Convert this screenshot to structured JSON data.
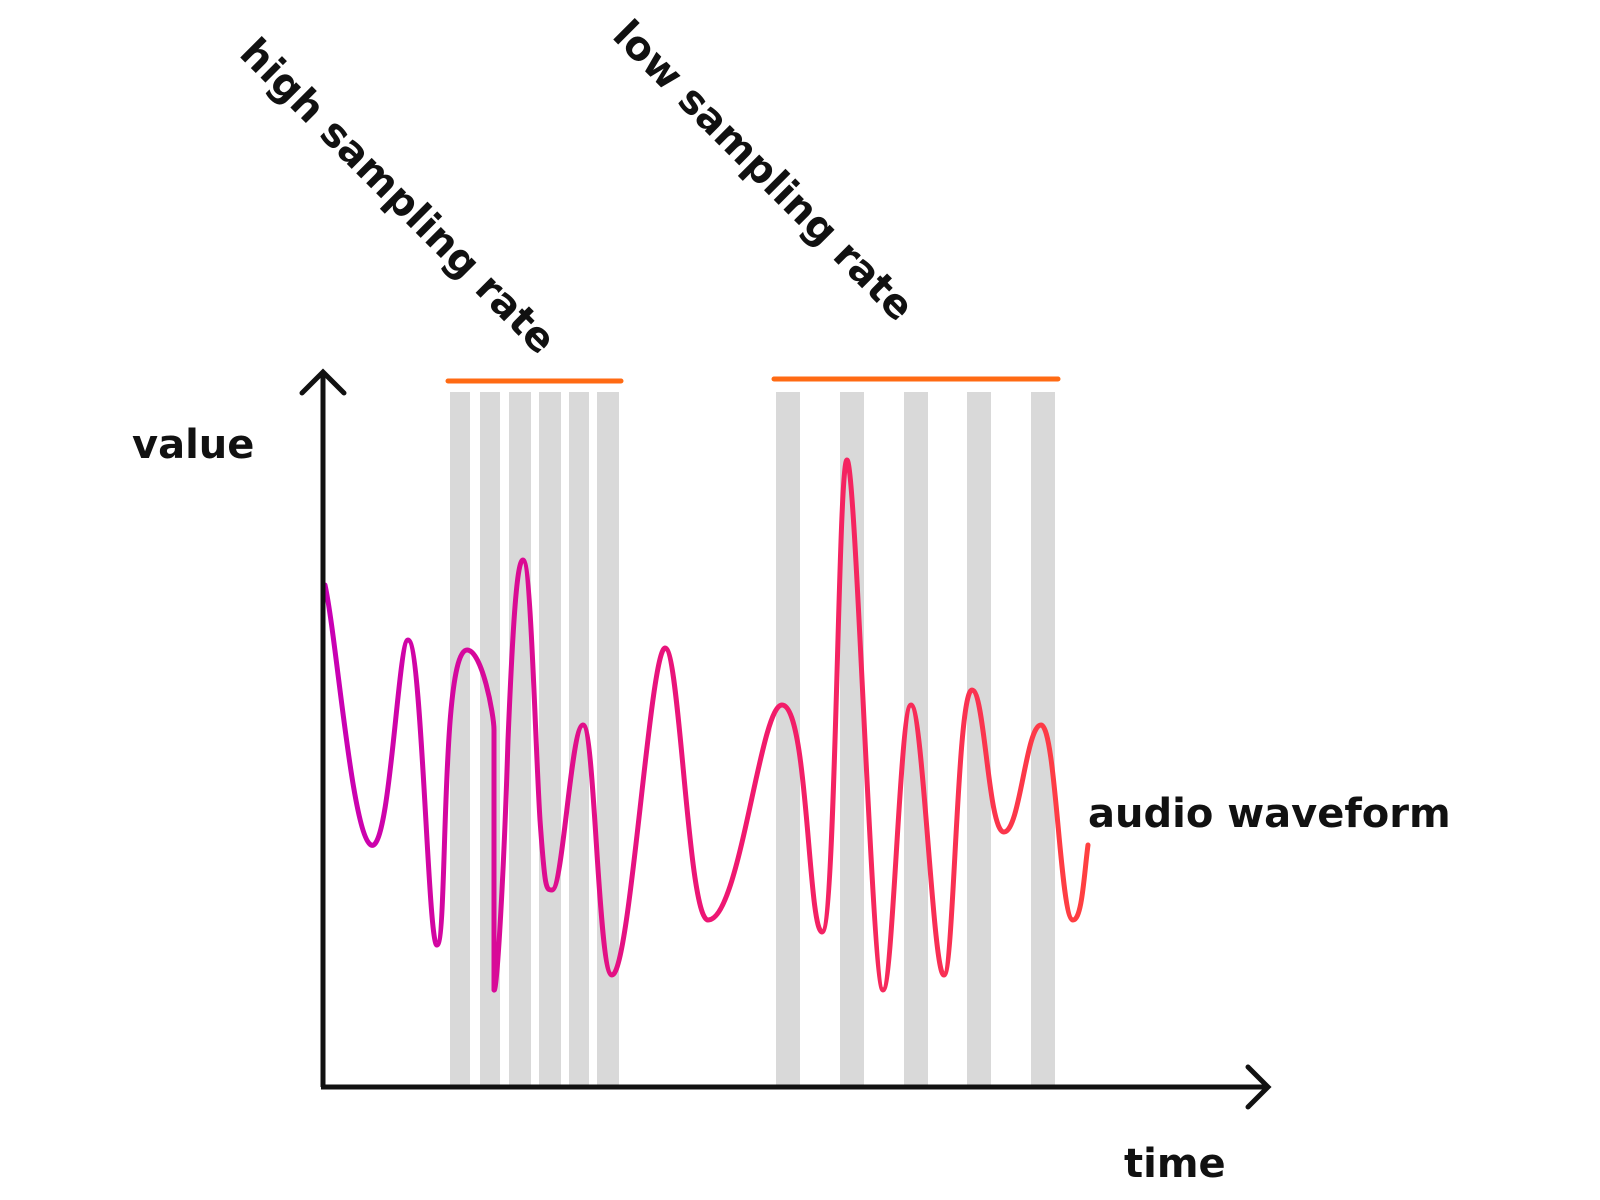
{
  "labels": {
    "y_axis": "value",
    "x_axis": "time",
    "waveform": "audio waveform",
    "high_rate": "high sampling rate",
    "low_rate": "low sampling rate"
  },
  "colors": {
    "axis": "#111111",
    "sample_bar": "#d9d9d9",
    "bracket": "#ff6a13",
    "wave_start": "#c800b4",
    "wave_mid": "#f0196e",
    "wave_end": "#ff4040"
  },
  "groups": {
    "high_rate": {
      "sample_count": 6
    },
    "low_rate": {
      "sample_count": 5
    }
  }
}
